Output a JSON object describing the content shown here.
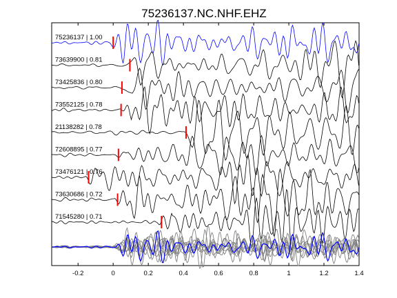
{
  "chart_data": {
    "type": "line",
    "title": "75236137.NC.NHF.EHZ",
    "xlabel": "",
    "ylabel": "",
    "xlim": [
      -0.35,
      1.4
    ],
    "grid": false,
    "x_ticks": [
      "-0.2",
      "0",
      "0.2",
      "0.4",
      "0.6",
      "0.8",
      "1",
      "1.2",
      "1.4"
    ],
    "x_tick_values": [
      -0.2,
      0,
      0.2,
      0.4,
      0.6,
      0.8,
      1.0,
      1.2,
      1.4
    ],
    "reference_color": "#0000ff",
    "trace_color": "#000000",
    "pick_color": "#ff0000",
    "stack_color": "#808080",
    "traces": [
      {
        "event_id": "75236137",
        "cc": "1.00",
        "label": "75236137 | 1.00",
        "pick_time": 0.0,
        "reference": true
      },
      {
        "event_id": "73639900",
        "cc": "0.81",
        "label": "73639900 | 0.81",
        "pick_time": 0.095,
        "reference": false
      },
      {
        "event_id": "73425836",
        "cc": "0.80",
        "label": "73425836 | 0.80",
        "pick_time": 0.05,
        "reference": false
      },
      {
        "event_id": "73552125",
        "cc": "0.78",
        "label": "73552125 | 0.78",
        "pick_time": 0.045,
        "reference": false
      },
      {
        "event_id": "21138282",
        "cc": "0.78",
        "label": "21138282 | 0.78",
        "pick_time": 0.415,
        "reference": false
      },
      {
        "event_id": "72608895",
        "cc": "0.77",
        "label": "72608895 | 0.77",
        "pick_time": 0.03,
        "reference": false
      },
      {
        "event_id": "73476121",
        "cc": "0.76",
        "label": "73476121 | 0.76",
        "pick_time": -0.14,
        "reference": false
      },
      {
        "event_id": "73630686",
        "cc": "0.72",
        "label": "73630686 | 0.72",
        "pick_time": 0.025,
        "reference": false
      },
      {
        "event_id": "71545280",
        "cc": "0.71",
        "label": "71545280 | 0.71",
        "pick_time": 0.275,
        "reference": false
      }
    ]
  }
}
